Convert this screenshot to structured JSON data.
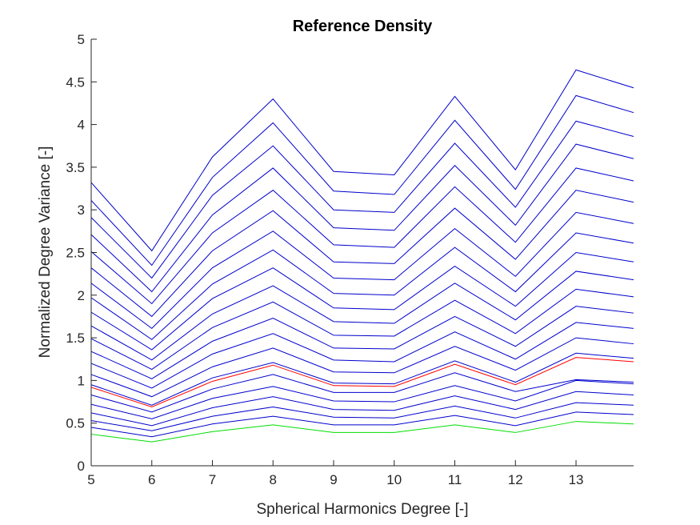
{
  "chart_data": {
    "type": "line",
    "title": "Reference Density",
    "xlabel": "Spherical Harmonics Degree [-]",
    "ylabel": "Normalized Degree Variance [-]",
    "xlim": [
      5,
      13.95
    ],
    "ylim": [
      0,
      5
    ],
    "xticks": [
      "5",
      "6",
      "7",
      "8",
      "9",
      "10",
      "11",
      "12",
      "13"
    ],
    "yticks": [
      "0",
      "0.5",
      "1",
      "1.5",
      "2",
      "2.5",
      "3",
      "3.5",
      "4",
      "4.5",
      "5"
    ],
    "grid": false,
    "x": [
      5,
      6,
      7,
      8,
      9,
      10,
      11,
      12,
      13,
      13.95
    ],
    "colors": {
      "blue": "#0000cd",
      "red": "#ff0000",
      "green": "#00dd00",
      "axis": "#262626"
    },
    "series": [
      {
        "color": "green",
        "values": [
          0.37,
          0.28,
          0.4,
          0.48,
          0.39,
          0.39,
          0.48,
          0.39,
          0.52,
          0.49
        ]
      },
      {
        "color": "blue",
        "values": [
          0.45,
          0.34,
          0.49,
          0.58,
          0.48,
          0.48,
          0.59,
          0.47,
          0.63,
          0.6
        ]
      },
      {
        "color": "blue",
        "values": [
          0.53,
          0.41,
          0.58,
          0.69,
          0.57,
          0.56,
          0.7,
          0.56,
          0.74,
          0.71
        ]
      },
      {
        "color": "blue",
        "values": [
          0.62,
          0.47,
          0.68,
          0.81,
          0.66,
          0.65,
          0.82,
          0.66,
          0.87,
          0.83
        ]
      },
      {
        "color": "blue",
        "values": [
          0.72,
          0.55,
          0.79,
          0.93,
          0.76,
          0.75,
          0.94,
          0.76,
          1.0,
          0.96
        ]
      },
      {
        "color": "blue",
        "values": [
          0.83,
          0.63,
          0.9,
          1.07,
          0.86,
          0.86,
          1.09,
          0.87,
          1.01,
          0.98
        ]
      },
      {
        "color": "red",
        "values": [
          0.92,
          0.69,
          0.99,
          1.18,
          0.94,
          0.93,
          1.19,
          0.95,
          1.27,
          1.22
        ]
      },
      {
        "color": "blue",
        "values": [
          0.95,
          0.71,
          1.03,
          1.21,
          0.97,
          0.96,
          1.23,
          0.98,
          1.32,
          1.26
        ]
      },
      {
        "color": "blue",
        "values": [
          1.07,
          0.81,
          1.16,
          1.38,
          1.1,
          1.09,
          1.4,
          1.12,
          1.5,
          1.43
        ]
      },
      {
        "color": "blue",
        "values": [
          1.2,
          0.91,
          1.31,
          1.55,
          1.24,
          1.22,
          1.57,
          1.25,
          1.68,
          1.61
        ]
      },
      {
        "color": "blue",
        "values": [
          1.34,
          1.02,
          1.46,
          1.73,
          1.38,
          1.37,
          1.75,
          1.4,
          1.87,
          1.79
        ]
      },
      {
        "color": "blue",
        "values": [
          1.49,
          1.13,
          1.62,
          1.92,
          1.53,
          1.52,
          1.94,
          1.55,
          2.07,
          1.98
        ]
      },
      {
        "color": "blue",
        "values": [
          1.64,
          1.24,
          1.78,
          2.11,
          1.69,
          1.67,
          2.14,
          1.71,
          2.28,
          2.18
        ]
      },
      {
        "color": "blue",
        "values": [
          1.8,
          1.36,
          1.96,
          2.32,
          1.85,
          1.83,
          2.34,
          1.87,
          2.5,
          2.39
        ]
      },
      {
        "color": "blue",
        "values": [
          1.97,
          1.48,
          2.13,
          2.53,
          2.02,
          2.0,
          2.56,
          2.04,
          2.73,
          2.61
        ]
      },
      {
        "color": "blue",
        "values": [
          2.14,
          1.61,
          2.32,
          2.75,
          2.2,
          2.18,
          2.78,
          2.22,
          2.97,
          2.84
        ]
      },
      {
        "color": "blue",
        "values": [
          2.32,
          1.75,
          2.52,
          2.99,
          2.39,
          2.37,
          3.02,
          2.42,
          3.23,
          3.09
        ]
      },
      {
        "color": "blue",
        "values": [
          2.51,
          1.9,
          2.73,
          3.23,
          2.59,
          2.56,
          3.27,
          2.62,
          3.49,
          3.34
        ]
      },
      {
        "color": "blue",
        "values": [
          2.71,
          2.04,
          2.94,
          3.49,
          2.79,
          2.76,
          3.52,
          2.82,
          3.77,
          3.6
        ]
      },
      {
        "color": "blue",
        "values": [
          2.91,
          2.2,
          3.17,
          3.75,
          3.0,
          2.97,
          3.78,
          3.03,
          4.04,
          3.86
        ]
      },
      {
        "color": "blue",
        "values": [
          3.11,
          2.35,
          3.38,
          4.02,
          3.22,
          3.18,
          4.05,
          3.24,
          4.34,
          4.14
        ]
      },
      {
        "color": "blue",
        "values": [
          3.32,
          2.52,
          3.62,
          4.3,
          3.45,
          3.41,
          4.33,
          3.47,
          4.64,
          4.43
        ]
      }
    ]
  }
}
